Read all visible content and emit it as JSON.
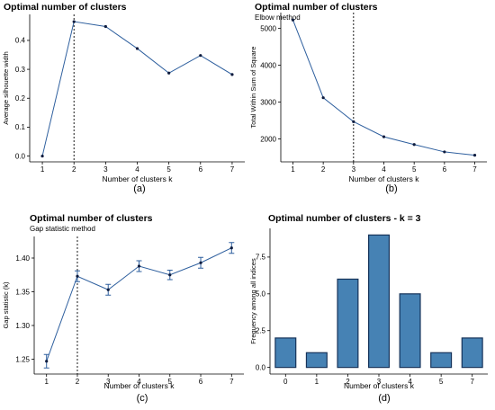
{
  "colors": {
    "line": "#2e5f9e",
    "point": "#0d1b3e",
    "bar": "#4682b4",
    "bar_stroke": "#16335a",
    "axis": "#000000",
    "vline": "#000000"
  },
  "chart_data": [
    {
      "id": "a",
      "type": "line",
      "title": "Optimal number of clusters",
      "subtitle": "",
      "xlabel": "Number of clusters k",
      "ylabel": "Average silhouette width",
      "caption": "(a)",
      "x": [
        1,
        2,
        3,
        4,
        5,
        6,
        7
      ],
      "values": [
        0.0,
        0.465,
        0.448,
        0.372,
        0.287,
        0.348,
        0.282
      ],
      "xlim": [
        0.6,
        7.4
      ],
      "ylim": [
        -0.02,
        0.49
      ],
      "yticks": [
        0.0,
        0.1,
        0.2,
        0.3,
        0.4
      ],
      "ytick_labels": [
        "0.0",
        "0.1",
        "0.2",
        "0.3",
        "0.4"
      ],
      "xticks": [
        1,
        2,
        3,
        4,
        5,
        6,
        7
      ],
      "vline": 2
    },
    {
      "id": "b",
      "type": "line",
      "title": "Optimal number of clusters",
      "subtitle": "Elbow method",
      "xlabel": "Number of clusters k",
      "ylabel": "Total Within Sum of Square",
      "caption": "(b)",
      "x": [
        1,
        2,
        3,
        4,
        5,
        6,
        7
      ],
      "values": [
        5230,
        3120,
        2470,
        2060,
        1850,
        1650,
        1560
      ],
      "xlim": [
        0.6,
        7.4
      ],
      "ylim": [
        1380,
        5430
      ],
      "yticks": [
        2000,
        3000,
        4000,
        5000
      ],
      "ytick_labels": [
        "2000",
        "3000",
        "4000",
        "5000"
      ],
      "xticks": [
        1,
        2,
        3,
        4,
        5,
        6,
        7
      ],
      "vline": 3
    },
    {
      "id": "c",
      "type": "line",
      "title": "Optimal number of clusters",
      "subtitle": "Gap statistic method",
      "xlabel": "Number of clusters k",
      "ylabel": "Gap statistic (k)",
      "caption": "(c)",
      "x": [
        1,
        2,
        3,
        4,
        5,
        6,
        7
      ],
      "values": [
        1.247,
        1.373,
        1.353,
        1.388,
        1.375,
        1.393,
        1.415
      ],
      "errors": [
        0.01,
        0.008,
        0.008,
        0.008,
        0.007,
        0.008,
        0.008
      ],
      "xlim": [
        0.6,
        7.4
      ],
      "ylim": [
        1.228,
        1.432
      ],
      "yticks": [
        1.25,
        1.3,
        1.35,
        1.4
      ],
      "ytick_labels": [
        "1.25",
        "1.30",
        "1.35",
        "1.40"
      ],
      "xticks": [
        1,
        2,
        3,
        4,
        5,
        6,
        7
      ],
      "vline": 2
    },
    {
      "id": "d",
      "type": "bar",
      "title": "Optimal number of clusters - k = 3",
      "subtitle": "",
      "xlabel": "Number of clusters k",
      "ylabel": "Frequency among all indices",
      "caption": "(d)",
      "categories": [
        "0",
        "1",
        "2",
        "3",
        "4",
        "5",
        "7"
      ],
      "values": [
        2,
        1,
        6,
        9,
        5,
        1,
        2
      ],
      "ylim": [
        -0.45,
        9.45
      ],
      "yticks": [
        0,
        2.5,
        5,
        7.5
      ],
      "ytick_labels": [
        "0.0",
        "2.5",
        "5.0",
        "7.5"
      ]
    }
  ]
}
